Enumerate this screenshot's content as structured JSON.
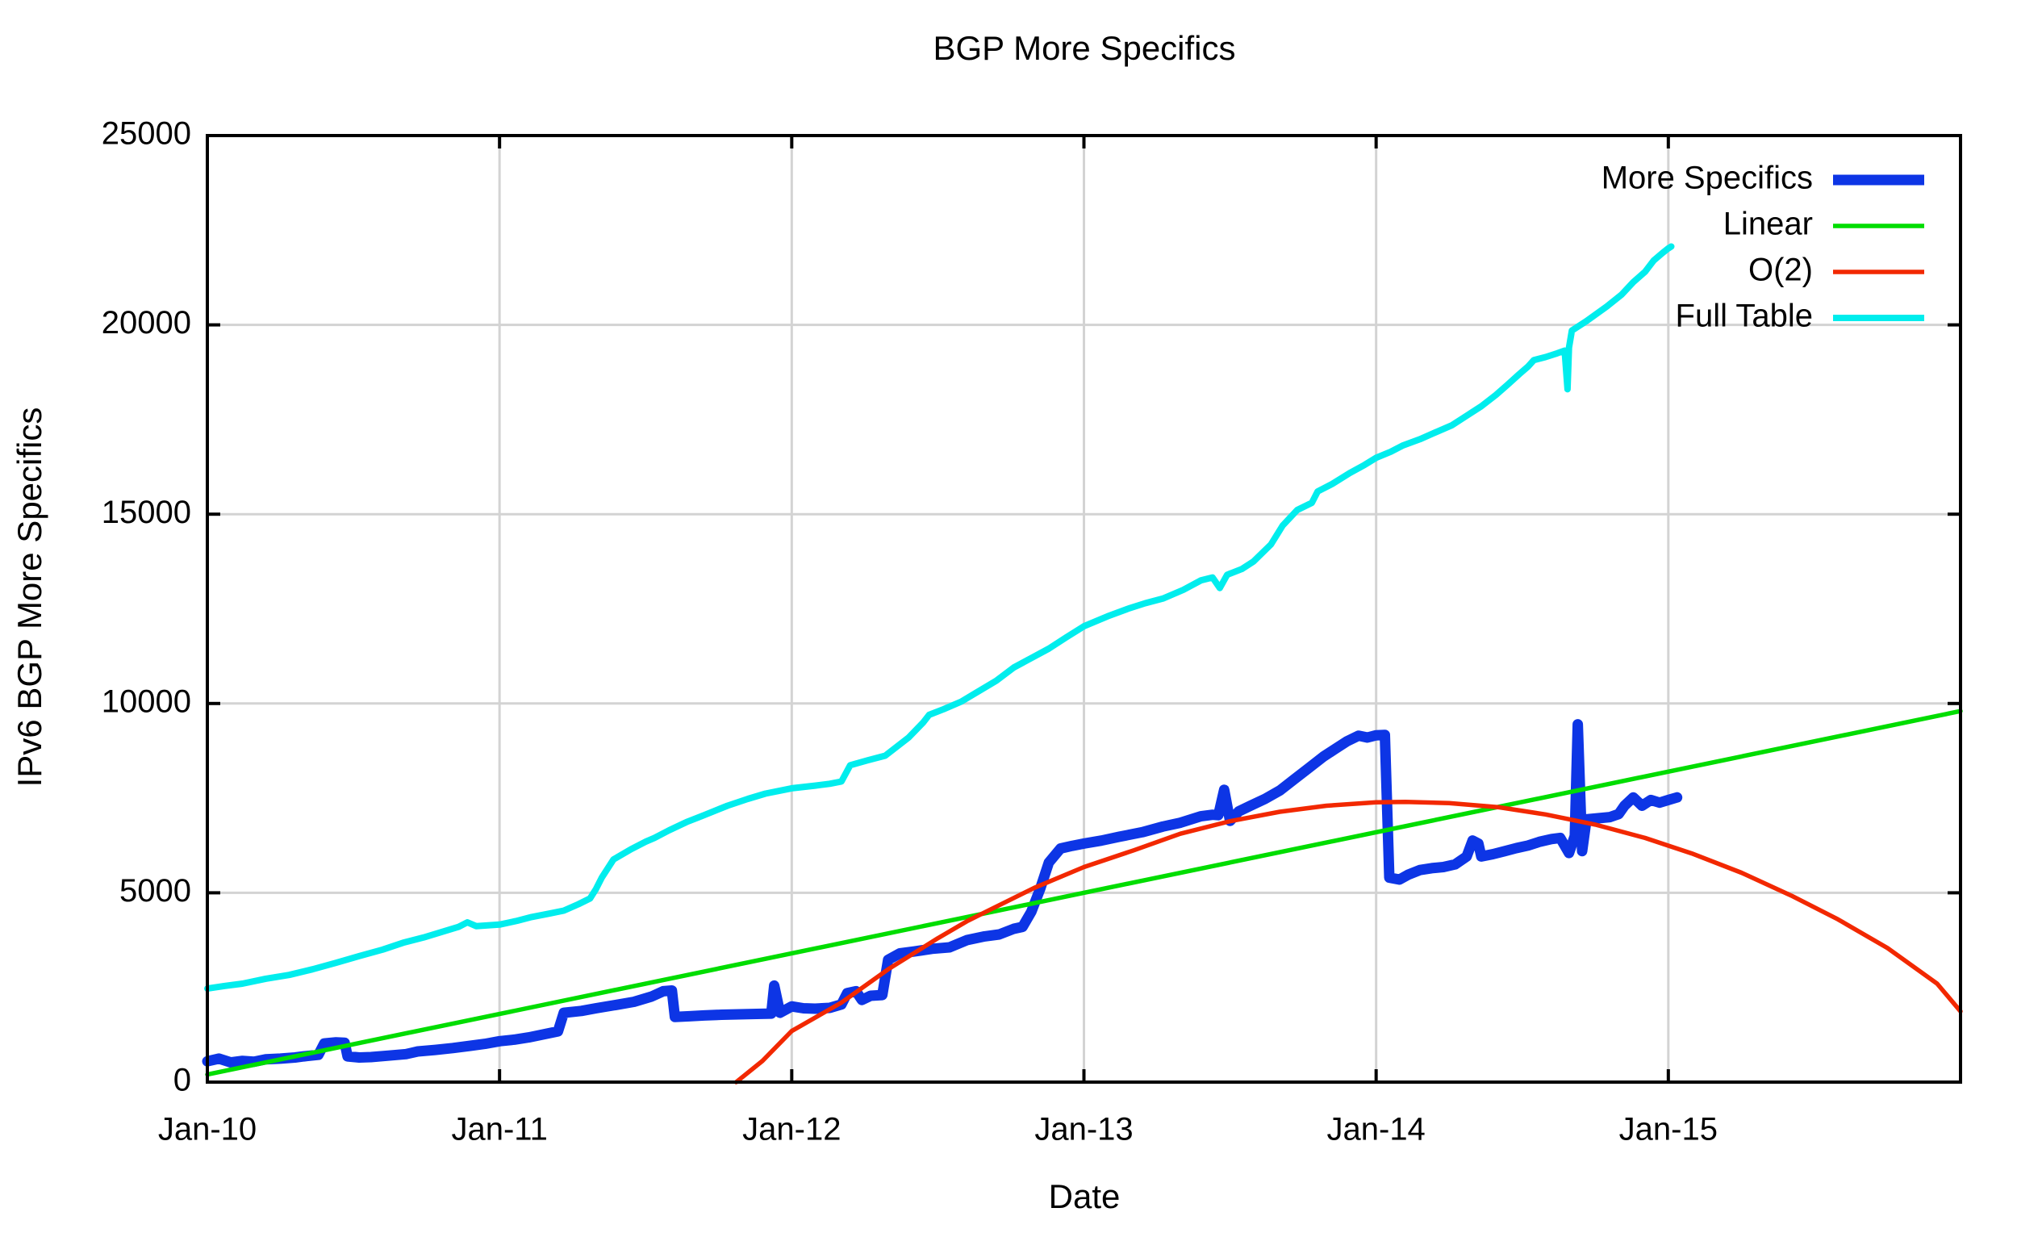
{
  "title": "BGP More Specifics",
  "axis": {
    "x_label": "Date",
    "y_label": "IPv6 BGP More Specifics"
  },
  "legend": {
    "items": [
      {
        "label": "More Specifics"
      },
      {
        "label": "Linear"
      },
      {
        "label": "O(2)"
      },
      {
        "label": "Full Table"
      }
    ]
  },
  "colors": {
    "more_specifics": "#0d35e5",
    "linear": "#00dd00",
    "o2": "#f22800",
    "full_table": "#00eded",
    "grid": "#d3d3d3",
    "axis": "#000000"
  },
  "chart_data": {
    "type": "line",
    "title": "BGP More Specifics",
    "xlabel": "Date",
    "ylabel": "IPv6 BGP More Specifics",
    "xlim": [
      2010,
      2016
    ],
    "ylim": [
      0,
      25000
    ],
    "grid": true,
    "legend_position": "top-right",
    "x_ticks": [
      {
        "value": 2010,
        "label": "Jan-10"
      },
      {
        "value": 2011,
        "label": "Jan-11"
      },
      {
        "value": 2012,
        "label": "Jan-12"
      },
      {
        "value": 2013,
        "label": "Jan-13"
      },
      {
        "value": 2014,
        "label": "Jan-14"
      },
      {
        "value": 2015,
        "label": "Jan-15"
      }
    ],
    "y_ticks": [
      {
        "value": 0,
        "label": "0"
      },
      {
        "value": 5000,
        "label": "5000"
      },
      {
        "value": 10000,
        "label": "10000"
      },
      {
        "value": 15000,
        "label": "15000"
      },
      {
        "value": 20000,
        "label": "20000"
      },
      {
        "value": 25000,
        "label": "25000"
      }
    ],
    "series": [
      {
        "name": "More Specifics",
        "color": "#0d35e5",
        "width": 13,
        "points": [
          [
            2010.0,
            550
          ],
          [
            2010.04,
            620
          ],
          [
            2010.08,
            520
          ],
          [
            2010.12,
            560
          ],
          [
            2010.16,
            540
          ],
          [
            2010.2,
            600
          ],
          [
            2010.25,
            620
          ],
          [
            2010.3,
            650
          ],
          [
            2010.33,
            680
          ],
          [
            2010.38,
            720
          ],
          [
            2010.4,
            1020
          ],
          [
            2010.44,
            1050
          ],
          [
            2010.47,
            1040
          ],
          [
            2010.48,
            680
          ],
          [
            2010.52,
            650
          ],
          [
            2010.56,
            660
          ],
          [
            2010.62,
            700
          ],
          [
            2010.68,
            740
          ],
          [
            2010.72,
            810
          ],
          [
            2010.78,
            850
          ],
          [
            2010.84,
            900
          ],
          [
            2010.9,
            960
          ],
          [
            2010.95,
            1010
          ],
          [
            2011.0,
            1080
          ],
          [
            2011.05,
            1120
          ],
          [
            2011.1,
            1180
          ],
          [
            2011.15,
            1260
          ],
          [
            2011.2,
            1340
          ],
          [
            2011.22,
            1830
          ],
          [
            2011.28,
            1880
          ],
          [
            2011.33,
            1950
          ],
          [
            2011.4,
            2040
          ],
          [
            2011.46,
            2120
          ],
          [
            2011.52,
            2260
          ],
          [
            2011.56,
            2400
          ],
          [
            2011.59,
            2420
          ],
          [
            2011.6,
            1720
          ],
          [
            2011.65,
            1740
          ],
          [
            2011.7,
            1760
          ],
          [
            2011.76,
            1780
          ],
          [
            2011.82,
            1790
          ],
          [
            2011.88,
            1800
          ],
          [
            2011.93,
            1810
          ],
          [
            2011.94,
            2550
          ],
          [
            2011.96,
            1830
          ],
          [
            2012.0,
            2000
          ],
          [
            2012.04,
            1950
          ],
          [
            2012.08,
            1940
          ],
          [
            2012.13,
            1960
          ],
          [
            2012.17,
            2050
          ],
          [
            2012.19,
            2350
          ],
          [
            2012.22,
            2400
          ],
          [
            2012.24,
            2170
          ],
          [
            2012.27,
            2280
          ],
          [
            2012.31,
            2300
          ],
          [
            2012.33,
            3230
          ],
          [
            2012.37,
            3400
          ],
          [
            2012.42,
            3450
          ],
          [
            2012.48,
            3520
          ],
          [
            2012.54,
            3560
          ],
          [
            2012.6,
            3750
          ],
          [
            2012.66,
            3850
          ],
          [
            2012.71,
            3900
          ],
          [
            2012.76,
            4050
          ],
          [
            2012.79,
            4100
          ],
          [
            2012.82,
            4500
          ],
          [
            2012.85,
            5100
          ],
          [
            2012.88,
            5800
          ],
          [
            2012.92,
            6170
          ],
          [
            2012.96,
            6240
          ],
          [
            2013.0,
            6300
          ],
          [
            2013.06,
            6380
          ],
          [
            2013.12,
            6480
          ],
          [
            2013.2,
            6600
          ],
          [
            2013.27,
            6750
          ],
          [
            2013.33,
            6850
          ],
          [
            2013.4,
            7020
          ],
          [
            2013.44,
            7060
          ],
          [
            2013.46,
            7050
          ],
          [
            2013.48,
            7720
          ],
          [
            2013.5,
            6900
          ],
          [
            2013.53,
            7150
          ],
          [
            2013.57,
            7300
          ],
          [
            2013.62,
            7480
          ],
          [
            2013.67,
            7700
          ],
          [
            2013.72,
            8000
          ],
          [
            2013.77,
            8300
          ],
          [
            2013.82,
            8600
          ],
          [
            2013.86,
            8800
          ],
          [
            2013.9,
            9000
          ],
          [
            2013.94,
            9150
          ],
          [
            2013.97,
            9100
          ],
          [
            2014.0,
            9160
          ],
          [
            2014.03,
            9170
          ],
          [
            2014.045,
            5400
          ],
          [
            2014.08,
            5350
          ],
          [
            2014.11,
            5480
          ],
          [
            2014.15,
            5600
          ],
          [
            2014.19,
            5650
          ],
          [
            2014.23,
            5680
          ],
          [
            2014.27,
            5750
          ],
          [
            2014.31,
            5960
          ],
          [
            2014.33,
            6380
          ],
          [
            2014.35,
            6300
          ],
          [
            2014.36,
            5960
          ],
          [
            2014.4,
            6020
          ],
          [
            2014.44,
            6100
          ],
          [
            2014.48,
            6180
          ],
          [
            2014.52,
            6250
          ],
          [
            2014.56,
            6350
          ],
          [
            2014.6,
            6420
          ],
          [
            2014.63,
            6450
          ],
          [
            2014.66,
            6050
          ],
          [
            2014.68,
            6500
          ],
          [
            2014.69,
            9450
          ],
          [
            2014.705,
            6100
          ],
          [
            2014.72,
            6940
          ],
          [
            2014.76,
            6970
          ],
          [
            2014.8,
            7000
          ],
          [
            2014.83,
            7080
          ],
          [
            2014.85,
            7300
          ],
          [
            2014.88,
            7520
          ],
          [
            2014.91,
            7300
          ],
          [
            2014.94,
            7450
          ],
          [
            2014.97,
            7380
          ],
          [
            2015.0,
            7450
          ],
          [
            2015.03,
            7520
          ]
        ]
      },
      {
        "name": "Linear",
        "color": "#00dd00",
        "width": 5.5,
        "points": [
          [
            2010.0,
            200
          ],
          [
            2016.0,
            9800
          ]
        ]
      },
      {
        "name": "O(2)",
        "color": "#f22800",
        "width": 5.5,
        "points": [
          [
            2011.81,
            0
          ],
          [
            2011.9,
            560
          ],
          [
            2012.0,
            1350
          ],
          [
            2012.17,
            2100
          ],
          [
            2012.33,
            2980
          ],
          [
            2012.5,
            3800
          ],
          [
            2012.6,
            4250
          ],
          [
            2012.67,
            4520
          ],
          [
            2012.83,
            5130
          ],
          [
            2013.0,
            5680
          ],
          [
            2013.17,
            6120
          ],
          [
            2013.33,
            6560
          ],
          [
            2013.5,
            6890
          ],
          [
            2013.67,
            7140
          ],
          [
            2013.83,
            7300
          ],
          [
            2014.0,
            7390
          ],
          [
            2014.1,
            7400
          ],
          [
            2014.25,
            7370
          ],
          [
            2014.42,
            7260
          ],
          [
            2014.58,
            7070
          ],
          [
            2014.75,
            6800
          ],
          [
            2014.92,
            6450
          ],
          [
            2015.08,
            6040
          ],
          [
            2015.25,
            5530
          ],
          [
            2015.42,
            4930
          ],
          [
            2015.58,
            4300
          ],
          [
            2015.75,
            3540
          ],
          [
            2015.92,
            2600
          ],
          [
            2016.0,
            1870
          ]
        ]
      },
      {
        "name": "Full Table",
        "color": "#00eded",
        "width": 8,
        "points": [
          [
            2010.0,
            2470
          ],
          [
            2010.06,
            2540
          ],
          [
            2010.12,
            2600
          ],
          [
            2010.2,
            2730
          ],
          [
            2010.28,
            2830
          ],
          [
            2010.36,
            2980
          ],
          [
            2010.44,
            3150
          ],
          [
            2010.52,
            3330
          ],
          [
            2010.6,
            3500
          ],
          [
            2010.67,
            3680
          ],
          [
            2010.74,
            3820
          ],
          [
            2010.8,
            3960
          ],
          [
            2010.86,
            4100
          ],
          [
            2010.89,
            4220
          ],
          [
            2010.92,
            4120
          ],
          [
            2011.0,
            4160
          ],
          [
            2011.06,
            4260
          ],
          [
            2011.11,
            4360
          ],
          [
            2011.17,
            4450
          ],
          [
            2011.22,
            4530
          ],
          [
            2011.27,
            4700
          ],
          [
            2011.31,
            4850
          ],
          [
            2011.33,
            5100
          ],
          [
            2011.35,
            5400
          ],
          [
            2011.39,
            5880
          ],
          [
            2011.45,
            6150
          ],
          [
            2011.5,
            6350
          ],
          [
            2011.53,
            6450
          ],
          [
            2011.58,
            6650
          ],
          [
            2011.64,
            6870
          ],
          [
            2011.7,
            7050
          ],
          [
            2011.78,
            7300
          ],
          [
            2011.85,
            7480
          ],
          [
            2011.91,
            7620
          ],
          [
            2012.0,
            7760
          ],
          [
            2012.08,
            7830
          ],
          [
            2012.13,
            7880
          ],
          [
            2012.17,
            7940
          ],
          [
            2012.2,
            8370
          ],
          [
            2012.26,
            8500
          ],
          [
            2012.32,
            8620
          ],
          [
            2012.4,
            9100
          ],
          [
            2012.45,
            9500
          ],
          [
            2012.47,
            9700
          ],
          [
            2012.52,
            9850
          ],
          [
            2012.58,
            10050
          ],
          [
            2012.63,
            10280
          ],
          [
            2012.7,
            10600
          ],
          [
            2012.76,
            10950
          ],
          [
            2012.82,
            11200
          ],
          [
            2012.88,
            11450
          ],
          [
            2012.94,
            11750
          ],
          [
            2013.0,
            12040
          ],
          [
            2013.08,
            12300
          ],
          [
            2013.15,
            12500
          ],
          [
            2013.21,
            12650
          ],
          [
            2013.27,
            12770
          ],
          [
            2013.34,
            13000
          ],
          [
            2013.4,
            13250
          ],
          [
            2013.44,
            13330
          ],
          [
            2013.465,
            13050
          ],
          [
            2013.49,
            13400
          ],
          [
            2013.54,
            13550
          ],
          [
            2013.58,
            13750
          ],
          [
            2013.64,
            14200
          ],
          [
            2013.68,
            14700
          ],
          [
            2013.73,
            15110
          ],
          [
            2013.78,
            15300
          ],
          [
            2013.8,
            15600
          ],
          [
            2013.85,
            15800
          ],
          [
            2013.91,
            16090
          ],
          [
            2013.96,
            16300
          ],
          [
            2014.0,
            16490
          ],
          [
            2014.05,
            16650
          ],
          [
            2014.09,
            16810
          ],
          [
            2014.15,
            16980
          ],
          [
            2014.2,
            17150
          ],
          [
            2014.26,
            17350
          ],
          [
            2014.31,
            17600
          ],
          [
            2014.36,
            17850
          ],
          [
            2014.41,
            18150
          ],
          [
            2014.45,
            18420
          ],
          [
            2014.49,
            18700
          ],
          [
            2014.52,
            18900
          ],
          [
            2014.54,
            19070
          ],
          [
            2014.58,
            19150
          ],
          [
            2014.62,
            19250
          ],
          [
            2014.645,
            19320
          ],
          [
            2014.655,
            18300
          ],
          [
            2014.66,
            19400
          ],
          [
            2014.67,
            19850
          ],
          [
            2014.72,
            20100
          ],
          [
            2014.79,
            20490
          ],
          [
            2014.84,
            20800
          ],
          [
            2014.88,
            21130
          ],
          [
            2014.92,
            21400
          ],
          [
            2014.95,
            21700
          ],
          [
            2014.98,
            21900
          ],
          [
            2015.0,
            22020
          ],
          [
            2015.01,
            22070
          ]
        ]
      }
    ]
  }
}
